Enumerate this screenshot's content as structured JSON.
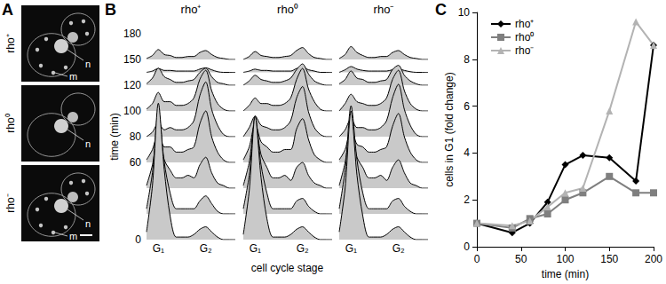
{
  "panel_labels": [
    "A",
    "B",
    "C"
  ],
  "panel_a": {
    "rows": [
      {
        "label": "rho⁺",
        "marks": [
          "n",
          "m"
        ]
      },
      {
        "label": "rho⁰",
        "marks": [
          "n"
        ]
      },
      {
        "label": "rho⁻",
        "marks": [
          "m",
          "n"
        ]
      }
    ]
  },
  "panel_b": {
    "ylabel": "time (min)",
    "xlabel": "cell cycle stage",
    "time_labels": [
      0,
      null,
      null,
      60,
      80,
      100,
      120,
      150,
      180
    ],
    "xlim": [
      0,
      15
    ],
    "xticks": [
      {
        "value": 2,
        "label": "G₁"
      },
      {
        "value": 10,
        "label": "G₂"
      }
    ],
    "ylim": [
      0,
      6
    ],
    "panels": [
      {
        "title": "rho⁺",
        "histograms": [
          [
            0.3,
            2.1,
            5.3,
            2.7,
            0.9,
            0.1,
            0.1,
            0.1,
            0.2,
            0.4,
            0.5,
            0.3,
            0.1,
            0,
            0,
            0
          ],
          [
            0.2,
            1.6,
            4.0,
            2.0,
            0.8,
            0.2,
            0.2,
            0.2,
            0.2,
            0.5,
            0.7,
            0.4,
            0.1,
            0,
            0,
            0
          ],
          [
            0.1,
            0.9,
            2.2,
            1.1,
            0.7,
            0.4,
            0.4,
            0.5,
            0.4,
            0.9,
            1.2,
            0.6,
            0.2,
            0.1,
            0,
            0
          ],
          [
            0.1,
            0.5,
            1.2,
            0.6,
            0.6,
            0.4,
            0.4,
            0.5,
            0.6,
            1.5,
            2.0,
            1.0,
            0.4,
            0.1,
            0,
            0
          ],
          [
            0,
            0.2,
            0.6,
            0.3,
            0.4,
            0.3,
            0.3,
            0.4,
            0.7,
            1.8,
            2.4,
            1.2,
            0.5,
            0.1,
            0,
            0
          ],
          [
            0.1,
            0.4,
            1.0,
            0.5,
            0.5,
            0.3,
            0.3,
            0.4,
            0.7,
            1.7,
            2.2,
            1.1,
            0.4,
            0.1,
            0,
            0
          ],
          [
            0.1,
            0.5,
            1.2,
            0.6,
            0.4,
            0.2,
            0.2,
            0.3,
            0.4,
            0.9,
            1.2,
            0.6,
            0.2,
            0.1,
            0,
            0
          ],
          [
            0.1,
            0.4,
            1.0,
            0.5,
            0.4,
            0.2,
            0.2,
            0.3,
            0.3,
            0.7,
            0.9,
            0.5,
            0.2,
            0.1,
            0,
            0
          ],
          [
            0,
            0.2,
            0.6,
            0.3,
            0.3,
            0.2,
            0.2,
            0.2,
            0.2,
            0.5,
            0.7,
            0.4,
            0.1,
            0,
            0,
            0
          ]
        ]
      },
      {
        "title": "rho⁰",
        "histograms": [
          [
            0.2,
            1.9,
            4.8,
            2.4,
            0.8,
            0.1,
            0.1,
            0.1,
            0.2,
            0.4,
            0.5,
            0.3,
            0.1,
            0,
            0,
            0
          ],
          [
            0.2,
            1.5,
            3.8,
            1.9,
            0.8,
            0.2,
            0.2,
            0.2,
            0.2,
            0.5,
            0.6,
            0.3,
            0.1,
            0,
            0,
            0
          ],
          [
            0.1,
            1.0,
            2.5,
            1.3,
            0.8,
            0.4,
            0.4,
            0.5,
            0.3,
            0.8,
            1.0,
            0.5,
            0.2,
            0.1,
            0,
            0
          ],
          [
            0.1,
            0.6,
            1.5,
            0.8,
            0.6,
            0.4,
            0.4,
            0.5,
            0.5,
            1.3,
            1.7,
            0.9,
            0.3,
            0.1,
            0,
            0
          ],
          [
            0,
            0.4,
            0.9,
            0.5,
            0.4,
            0.3,
            0.3,
            0.4,
            0.7,
            1.7,
            2.2,
            1.1,
            0.4,
            0.1,
            0,
            0
          ],
          [
            0,
            0.3,
            0.7,
            0.4,
            0.4,
            0.3,
            0.3,
            0.4,
            0.7,
            1.7,
            2.3,
            1.2,
            0.5,
            0.1,
            0,
            0
          ],
          [
            0,
            0.3,
            0.7,
            0.4,
            0.3,
            0.2,
            0.2,
            0.3,
            0.5,
            1.1,
            1.5,
            0.8,
            0.3,
            0.1,
            0,
            0
          ],
          [
            0,
            0.3,
            0.8,
            0.4,
            0.3,
            0.2,
            0.2,
            0.3,
            0.4,
            0.9,
            1.2,
            0.6,
            0.2,
            0.1,
            0,
            0
          ],
          [
            0,
            0.2,
            0.5,
            0.3,
            0.3,
            0.2,
            0.2,
            0.2,
            0.2,
            0.6,
            0.8,
            0.4,
            0.2,
            0,
            0,
            0
          ]
        ]
      },
      {
        "title": "rho⁻",
        "histograms": [
          [
            0.3,
            2.0,
            5.0,
            2.5,
            0.9,
            0.1,
            0.1,
            0.1,
            0.2,
            0.4,
            0.5,
            0.3,
            0.1,
            0,
            0,
            0
          ],
          [
            0.2,
            1.7,
            4.2,
            2.1,
            0.8,
            0.2,
            0.2,
            0.2,
            0.2,
            0.5,
            0.6,
            0.3,
            0.1,
            0,
            0,
            0
          ],
          [
            0.1,
            1.0,
            2.4,
            1.2,
            0.8,
            0.4,
            0.4,
            0.5,
            0.3,
            0.8,
            1.1,
            0.6,
            0.2,
            0.1,
            0,
            0
          ],
          [
            0.1,
            0.5,
            1.3,
            0.7,
            0.6,
            0.4,
            0.4,
            0.5,
            0.6,
            1.4,
            1.9,
            1.0,
            0.4,
            0.1,
            0,
            0
          ],
          [
            0,
            0.3,
            0.8,
            0.4,
            0.4,
            0.3,
            0.3,
            0.4,
            0.7,
            1.7,
            2.3,
            1.2,
            0.5,
            0.1,
            0,
            0
          ],
          [
            0,
            0.4,
            0.9,
            0.5,
            0.4,
            0.3,
            0.3,
            0.4,
            0.7,
            1.7,
            2.2,
            1.1,
            0.4,
            0.1,
            0,
            0
          ],
          [
            0.1,
            0.4,
            1.0,
            0.5,
            0.4,
            0.2,
            0.2,
            0.3,
            0.4,
            1.1,
            1.4,
            0.7,
            0.3,
            0.1,
            0,
            0
          ],
          [
            0.1,
            0.5,
            1.3,
            0.7,
            0.4,
            0.2,
            0.2,
            0.3,
            0.3,
            0.7,
            0.9,
            0.5,
            0.2,
            0.1,
            0,
            0
          ],
          [
            0,
            0.4,
            0.9,
            0.5,
            0.3,
            0.2,
            0.2,
            0.2,
            0.2,
            0.4,
            0.5,
            0.3,
            0.1,
            0,
            0,
            0
          ]
        ]
      }
    ]
  },
  "chart_data": {
    "type": "line",
    "xlabel": "time (min)",
    "ylabel": "cells in G1 (fold change)",
    "x": [
      0,
      40,
      60,
      80,
      100,
      120,
      150,
      180,
      200
    ],
    "xlim": [
      0,
      200
    ],
    "xticks": [
      0,
      50,
      100,
      150,
      200
    ],
    "ylim": [
      0,
      10
    ],
    "yticks": [
      0,
      2,
      4,
      6,
      8,
      10
    ],
    "grid": false,
    "legend": "upper left",
    "series": [
      {
        "name": "rho⁺",
        "color": "#000000",
        "marker": "diamond",
        "values": [
          1,
          0.6,
          1.0,
          1.9,
          3.5,
          3.9,
          3.8,
          2.8,
          8.6
        ]
      },
      {
        "name": "rho⁰",
        "color": "#7f7f7f",
        "marker": "square",
        "values": [
          1,
          0.8,
          1.2,
          1.4,
          2.0,
          2.3,
          3.0,
          2.3,
          2.3
        ]
      },
      {
        "name": "rho⁻",
        "color": "#b3b3b3",
        "marker": "triangle",
        "values": [
          1,
          0.9,
          1.1,
          1.7,
          2.3,
          2.5,
          5.8,
          9.6,
          8.6
        ]
      }
    ]
  }
}
